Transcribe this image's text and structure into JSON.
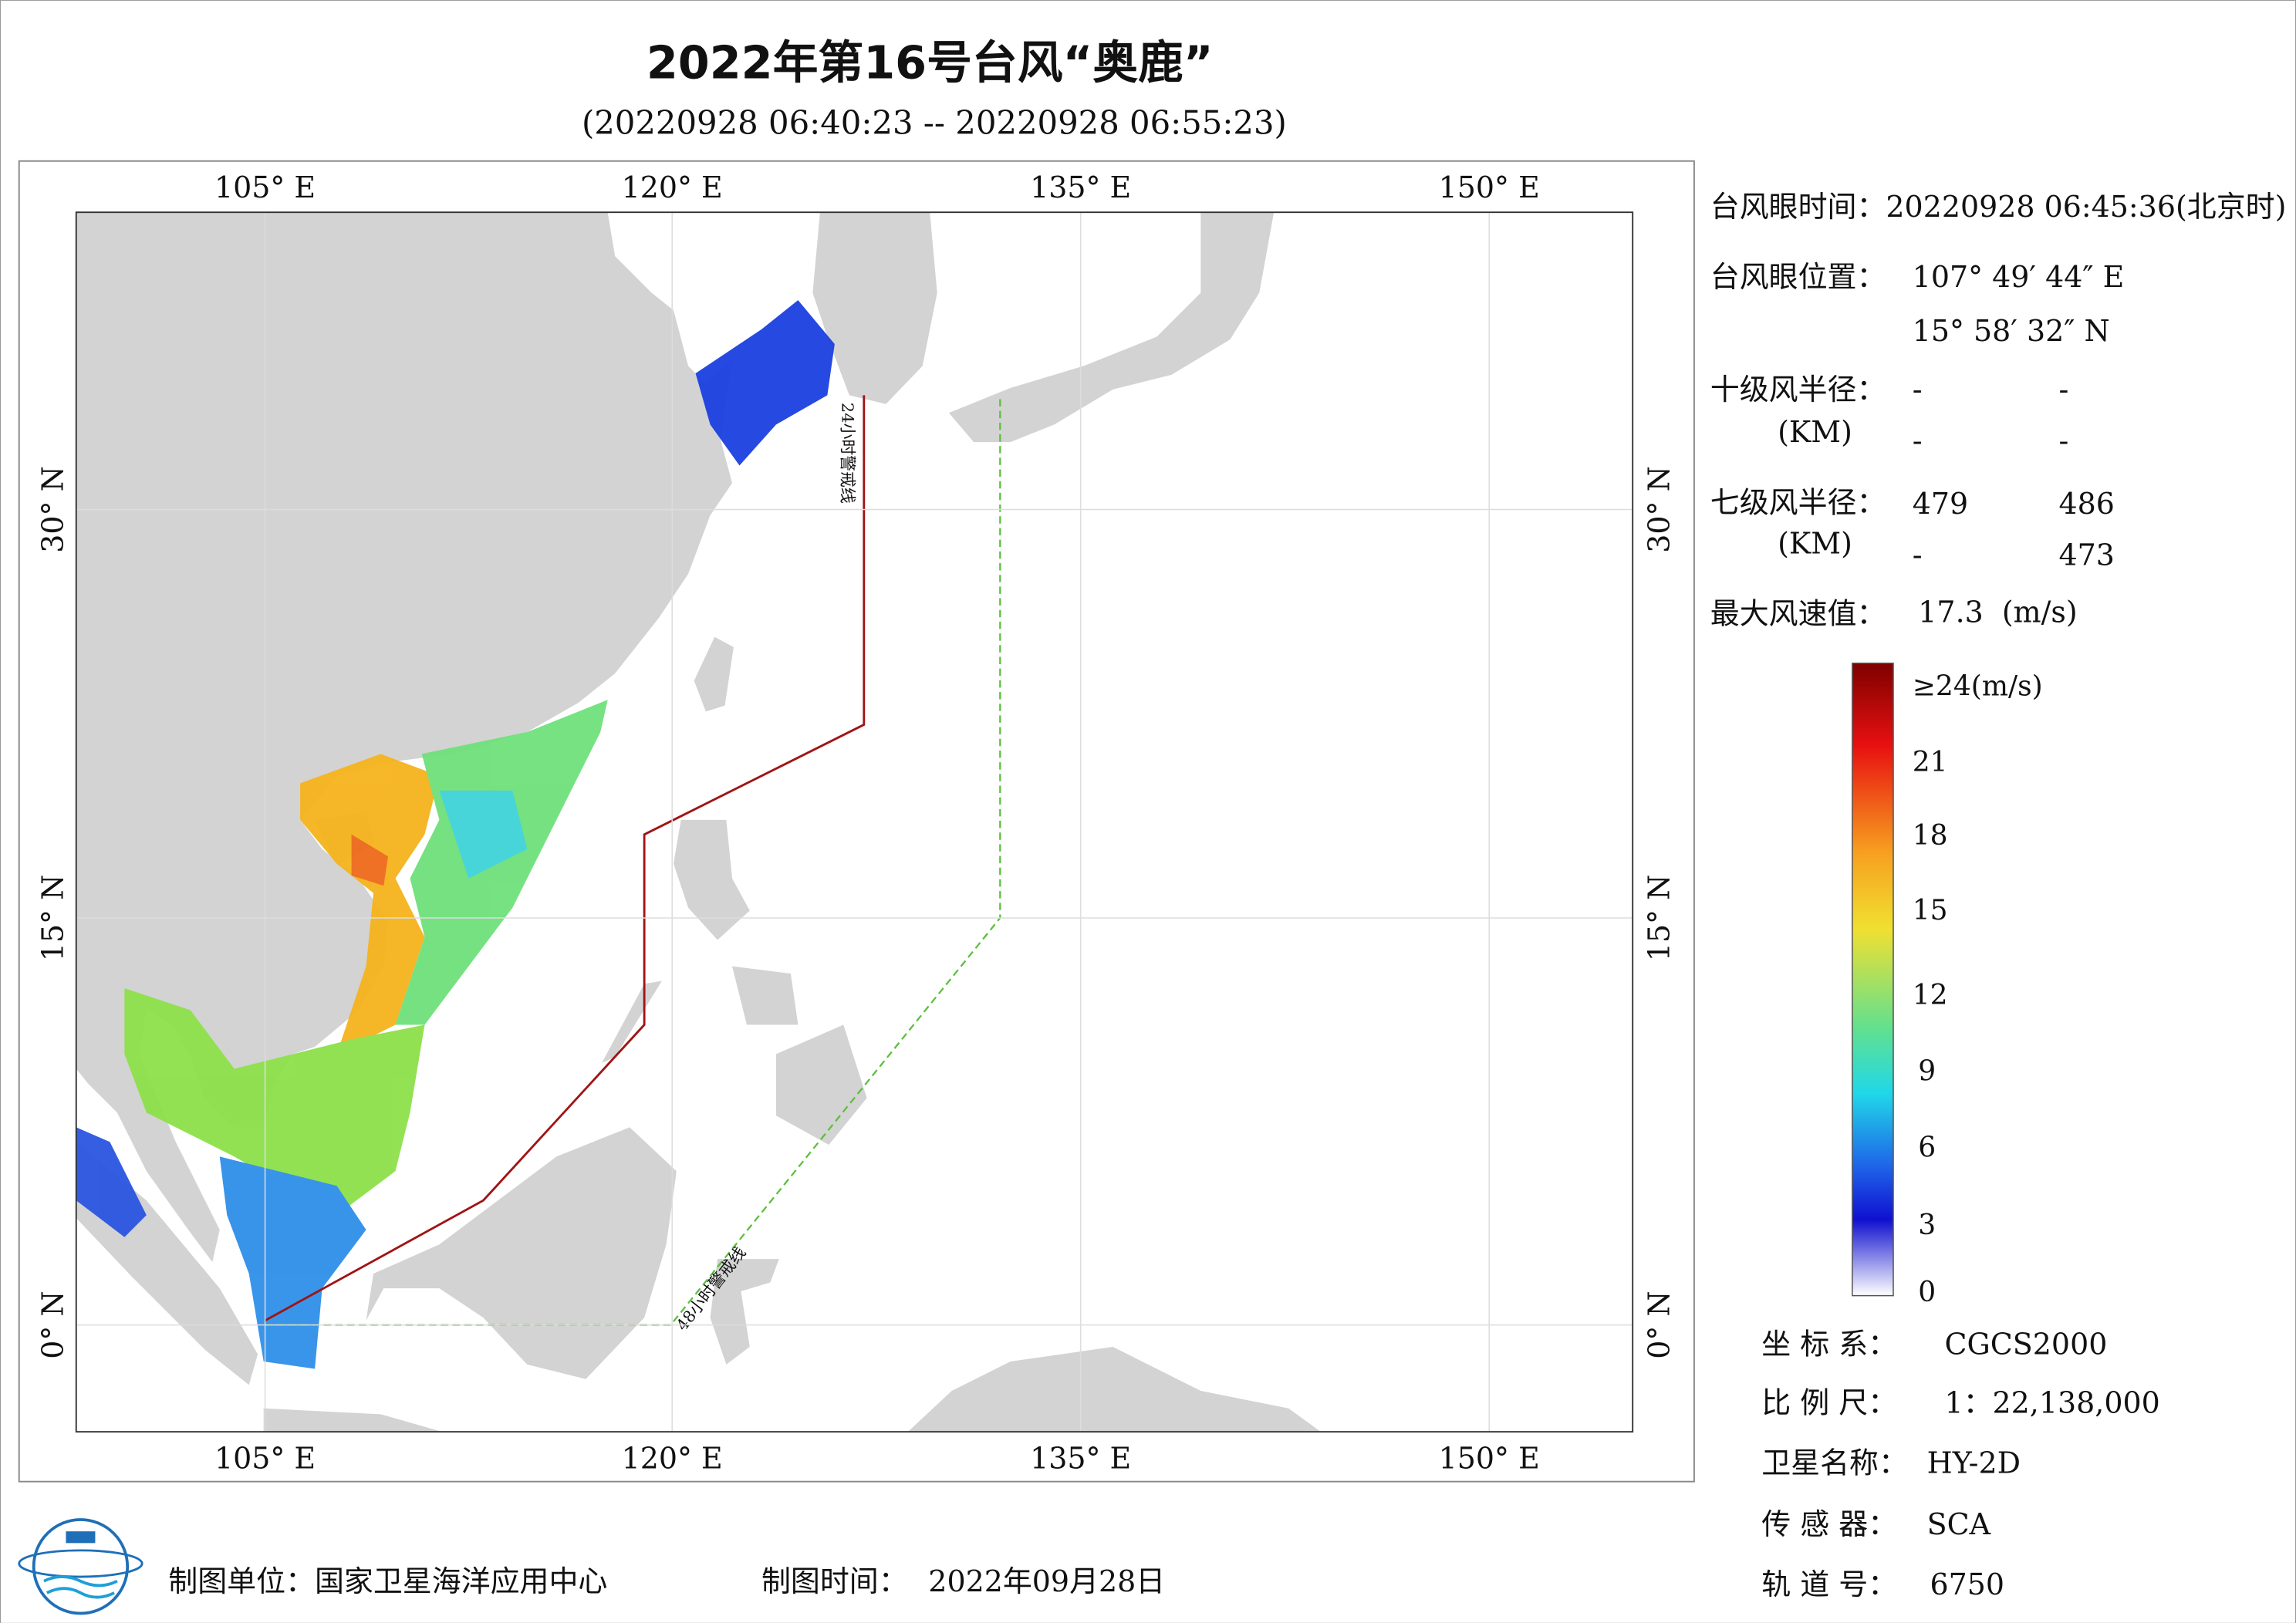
{
  "header": {
    "title": "2022年第16号台风“奥鹿”",
    "subtitle": "(20220928 06:40:23 -- 20220928 06:55:23)"
  },
  "map": {
    "lon_labels": [
      "105° E",
      "120° E",
      "135° E",
      "150° E"
    ],
    "lat_labels": [
      "30° N",
      "15° N",
      "0° N"
    ],
    "warning_lines": [
      "24小时警戒线",
      "48小时警戒线"
    ]
  },
  "info": {
    "eye_time": "台风眼时间：20220928 06:45:36(北京时)",
    "eye_position": {
      "label": "台风眼位置：",
      "lon": "107° 49′ 44″ E",
      "lat": "15° 58′ 32″ N"
    },
    "radius10": {
      "label": "十级风半径：",
      "unit": "(KM)",
      "values": [
        "-",
        "-",
        "-",
        "-"
      ]
    },
    "radius7": {
      "label": "七级风半径：",
      "unit": "(KM)",
      "values": [
        "479",
        "486",
        "-",
        "473"
      ]
    },
    "max_wind": {
      "label": "最大风速值：",
      "value": "17.3  (m/s)"
    }
  },
  "colorbar": {
    "labels": [
      "≥24(m/s)",
      "21",
      "18",
      "15",
      "12",
      "9",
      "6",
      "3",
      "0"
    ]
  },
  "metadata": {
    "rows": [
      [
        "坐 标 系：",
        "CGCS2000"
      ],
      [
        "比 例 尺：",
        "1：22,138,000"
      ],
      [
        "卫星名称：",
        "HY-2D"
      ],
      [
        "传 感 器：",
        "SCA"
      ],
      [
        "轨 道 号：",
        "6750"
      ]
    ]
  },
  "footer": {
    "unit": "制图单位：国家卫星海洋应用中心",
    "time_label": "制图时间：",
    "time": "2022年09月28日"
  }
}
